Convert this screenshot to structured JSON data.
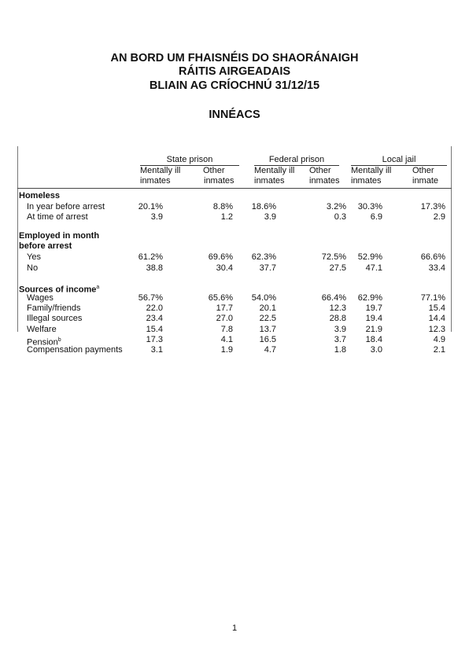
{
  "header": {
    "line1": "AN BORD UM FHAISNÉIS DO SHAORÁNAIGH",
    "line2": "RÁITIS AIRGEADAIS",
    "line3": "BLIAIN AG CRÍOCHNÚ 31/12/15",
    "section": "INNÉACS"
  },
  "table": {
    "groups": [
      "State prison",
      "Federal prison",
      "Local jail"
    ],
    "sub_headers": [
      [
        "Mentally ill",
        "inmates"
      ],
      [
        "Other",
        "inmates"
      ],
      [
        "Mentally ill",
        "inmates"
      ],
      [
        "Other",
        "inmates"
      ],
      [
        "Mentally ill",
        "inmates"
      ],
      [
        "Other",
        "inmate"
      ]
    ],
    "sections": [
      {
        "title": [
          "Homeless"
        ],
        "rows": [
          {
            "label": "In year before arrest",
            "values": [
              "20.1%",
              "8.8%",
              "18.6%",
              "3.2%",
              "30.3%",
              "17.3%"
            ]
          },
          {
            "label": "At time of arrest",
            "values": [
              "3.9",
              "1.2",
              "3.9",
              "0.3",
              "6.9",
              "2.9"
            ]
          }
        ]
      },
      {
        "title": [
          "Employed in month",
          "before arrest"
        ],
        "rows": [
          {
            "label": "Yes",
            "values": [
              "61.2%",
              "69.6%",
              "62.3%",
              "72.5%",
              "52.9%",
              "66.6%"
            ]
          },
          {
            "label": "No",
            "values": [
              "38.8",
              "30.4",
              "37.7",
              "27.5",
              "47.1",
              "33.4"
            ]
          }
        ]
      },
      {
        "title": [
          "Sources of  income"
        ],
        "title_sup": "a",
        "rows": [
          {
            "label": "Wages",
            "values": [
              "56.7%",
              "65.6%",
              "54.0%",
              "66.4%",
              "62.9%",
              "77.1%"
            ]
          },
          {
            "label": "Family/friends",
            "values": [
              "22.0",
              "17.7",
              "20.1",
              "12.3",
              "19.7",
              "15.4"
            ]
          },
          {
            "label": "Illegal sources",
            "values": [
              "23.4",
              "27.0",
              "22.5",
              "28.8",
              "19.4",
              "14.4"
            ]
          },
          {
            "label": "Welfare",
            "values": [
              "15.4",
              "7.8",
              "13.7",
              "3.9",
              "21.9",
              "12.3"
            ]
          },
          {
            "label": "Pension",
            "label_sup": "b",
            "values": [
              "17.3",
              "4.1",
              "16.5",
              "3.7",
              "18.4",
              "4.9"
            ]
          },
          {
            "label": "Compensation payments",
            "values": [
              "3.1",
              "1.9",
              "4.7",
              "1.8",
              "3.0",
              "2.1"
            ]
          }
        ]
      }
    ]
  },
  "page_number": "1"
}
